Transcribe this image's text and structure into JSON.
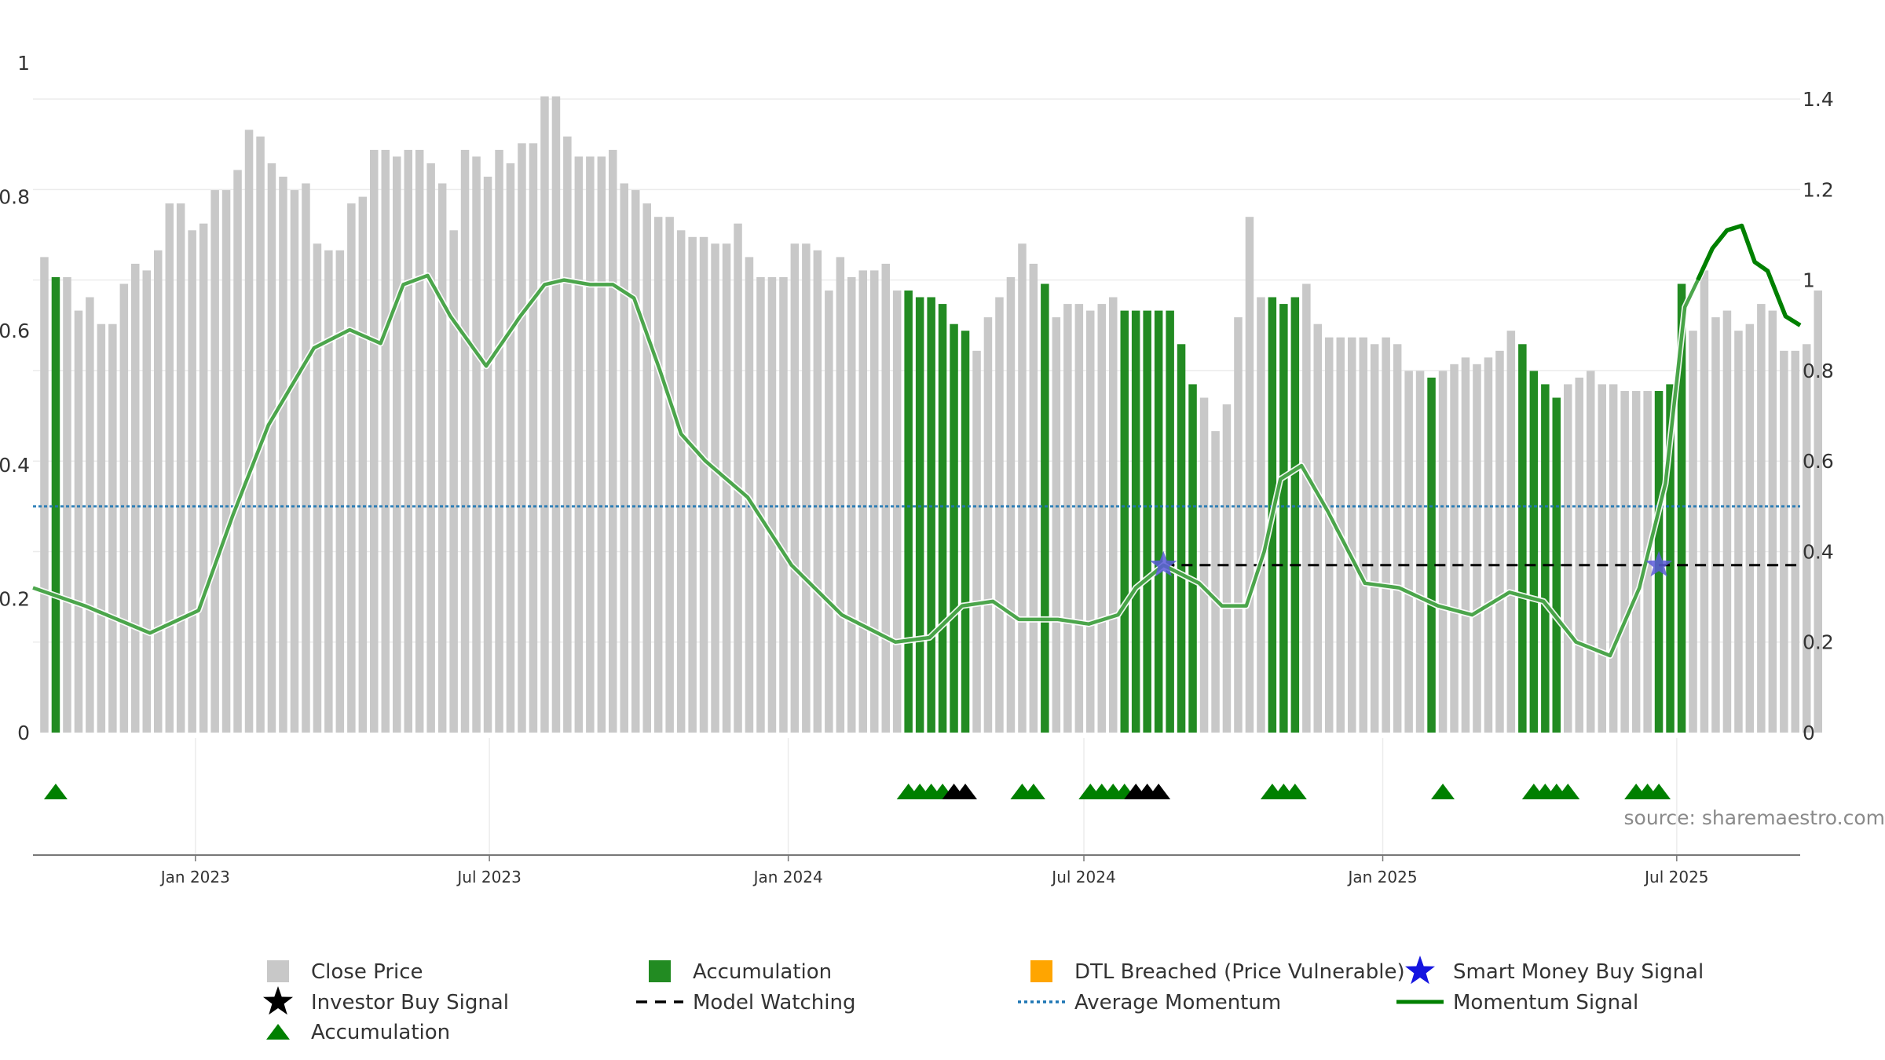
{
  "source_text": "source: sharemaestro.com",
  "colors": {
    "close_price": "#c8c8c8",
    "accumulation": "#228b22",
    "dtl": "#ffa500",
    "smart_money": "#1515e0",
    "investor_buy": "#000000",
    "average_momentum": "#1f77b4",
    "momentum_signal": "#008000",
    "model_watching": "#000000"
  },
  "legend": [
    {
      "label": "Close Price",
      "symbol": "square",
      "color": "#c8c8c8"
    },
    {
      "label": "Accumulation",
      "symbol": "square",
      "color": "#228b22"
    },
    {
      "label": "DTL Breached (Price Vulnerable)",
      "symbol": "square",
      "color": "#ffa500"
    },
    {
      "label": "Smart Money Buy Signal",
      "symbol": "star",
      "color": "#1515e0"
    },
    {
      "label": "Investor Buy Signal",
      "symbol": "star",
      "color": "#000000"
    },
    {
      "label": "Model Watching",
      "symbol": "dash",
      "color": "#000000"
    },
    {
      "label": "Average Momentum",
      "symbol": "dot",
      "color": "#1f77b4"
    },
    {
      "label": "Momentum Signal",
      "symbol": "line",
      "color": "#008000"
    },
    {
      "label": "Accumulation",
      "symbol": "triangle",
      "color": "#008000"
    }
  ],
  "chart_data": {
    "type": "bar",
    "x_axis": {
      "range": [
        "2022-09-23",
        "2025-09-15"
      ],
      "tick_labels": [
        "Jan 2023",
        "Jul 2023",
        "Jan 2024",
        "Jul 2024",
        "Jan 2025",
        "Jul 2025"
      ],
      "tick_dates": [
        "2023-01-01",
        "2023-07-01",
        "2024-01-01",
        "2024-07-01",
        "2025-01-01",
        "2025-07-01"
      ]
    },
    "y_left": {
      "range": [
        0,
        1
      ],
      "ticks": [
        0,
        0.2,
        0.4,
        0.6,
        0.8,
        1
      ],
      "tick_labels": [
        "0",
        "0.2",
        "0.4",
        "0.6",
        "0.8",
        "1"
      ]
    },
    "y_right": {
      "range": [
        0,
        1.48
      ],
      "ticks": [
        0,
        0.2,
        0.4,
        0.6,
        0.8,
        1,
        1.2,
        1.4
      ],
      "tick_labels": [
        "0",
        "0.2",
        "0.4",
        "0.6",
        "0.8",
        "1",
        "1.2",
        "1.4"
      ]
    },
    "grid": true,
    "legend_position": "bottom",
    "bar_series": {
      "name": "Close Price",
      "start_date": "2022-09-30",
      "interval_days": 7,
      "values": [
        0.71,
        0.68,
        0.68,
        0.63,
        0.65,
        0.61,
        0.61,
        0.67,
        0.7,
        0.69,
        0.72,
        0.79,
        0.79,
        0.75,
        0.76,
        0.81,
        0.81,
        0.84,
        0.9,
        0.89,
        0.85,
        0.83,
        0.81,
        0.82,
        0.73,
        0.72,
        0.72,
        0.79,
        0.8,
        0.87,
        0.87,
        0.86,
        0.87,
        0.87,
        0.85,
        0.82,
        0.75,
        0.87,
        0.86,
        0.83,
        0.87,
        0.85,
        0.88,
        0.88,
        0.95,
        0.95,
        0.89,
        0.86,
        0.86,
        0.86,
        0.87,
        0.82,
        0.81,
        0.79,
        0.77,
        0.77,
        0.75,
        0.74,
        0.74,
        0.73,
        0.73,
        0.76,
        0.71,
        0.68,
        0.68,
        0.68,
        0.73,
        0.73,
        0.72,
        0.66,
        0.71,
        0.68,
        0.69,
        0.69,
        0.7,
        0.66,
        0.66,
        0.65,
        0.65,
        0.64,
        0.61,
        0.6,
        0.57,
        0.62,
        0.65,
        0.68,
        0.73,
        0.7,
        0.67,
        0.62,
        0.64,
        0.64,
        0.63,
        0.64,
        0.65,
        0.63,
        0.63,
        0.63,
        0.63,
        0.63,
        0.58,
        0.52,
        0.5,
        0.45,
        0.49,
        0.62,
        0.77,
        0.65,
        0.65,
        0.64,
        0.65,
        0.67,
        0.61,
        0.59,
        0.59,
        0.59,
        0.59,
        0.58,
        0.59,
        0.58,
        0.54,
        0.54,
        0.53,
        0.54,
        0.55,
        0.56,
        0.55,
        0.56,
        0.57,
        0.6,
        0.58,
        0.54,
        0.52,
        0.5,
        0.52,
        0.53,
        0.54,
        0.52,
        0.52,
        0.51,
        0.51,
        0.51,
        0.51,
        0.52,
        0.67,
        0.6,
        0.69,
        0.62,
        0.63,
        0.6,
        0.61,
        0.64,
        0.63,
        0.57,
        0.57,
        0.58,
        0.66
      ],
      "accumulation_indices": [
        1,
        76,
        77,
        78,
        79,
        80,
        81,
        88,
        95,
        96,
        97,
        98,
        99,
        100,
        101,
        108,
        109,
        110,
        122,
        130,
        131,
        132,
        133,
        142,
        143,
        144
      ]
    },
    "series": [
      {
        "name": "Momentum Signal",
        "axis": "right",
        "x": [
          "2022-09-23",
          "2022-10-25",
          "2022-12-04",
          "2023-01-03",
          "2023-01-24",
          "2023-02-15",
          "2023-03-15",
          "2023-04-06",
          "2023-04-25",
          "2023-05-09",
          "2023-05-24",
          "2023-06-07",
          "2023-06-29",
          "2023-07-20",
          "2023-08-04",
          "2023-08-16",
          "2023-09-01",
          "2023-09-15",
          "2023-09-28",
          "2023-10-14",
          "2023-10-27",
          "2023-11-11",
          "2023-12-07",
          "2024-01-03",
          "2024-02-03",
          "2024-03-07",
          "2024-03-28",
          "2024-04-17",
          "2024-05-06",
          "2024-05-22",
          "2024-06-15",
          "2024-07-04",
          "2024-07-22",
          "2024-08-02",
          "2024-08-19",
          "2024-09-10",
          "2024-09-24",
          "2024-10-09",
          "2024-10-20",
          "2024-10-30",
          "2024-11-12",
          "2024-11-28",
          "2024-12-21",
          "2025-01-11",
          "2025-02-04",
          "2025-02-25",
          "2025-03-20",
          "2025-04-10",
          "2025-04-30",
          "2025-05-21",
          "2025-06-08",
          "2025-06-24",
          "2025-07-06",
          "2025-07-14",
          "2025-07-23",
          "2025-08-01",
          "2025-08-10",
          "2025-08-18",
          "2025-08-26",
          "2025-09-06",
          "2025-09-15"
        ],
        "y": [
          0.32,
          0.28,
          0.22,
          0.27,
          0.48,
          0.68,
          0.85,
          0.89,
          0.86,
          0.99,
          1.01,
          0.92,
          0.81,
          0.92,
          0.99,
          1.0,
          0.99,
          0.99,
          0.96,
          0.8,
          0.66,
          0.6,
          0.52,
          0.37,
          0.26,
          0.2,
          0.21,
          0.28,
          0.29,
          0.25,
          0.25,
          0.24,
          0.26,
          0.32,
          0.37,
          0.33,
          0.28,
          0.28,
          0.4,
          0.56,
          0.59,
          0.49,
          0.33,
          0.32,
          0.28,
          0.26,
          0.31,
          0.29,
          0.2,
          0.17,
          0.32,
          0.55,
          0.94,
          1.0,
          1.07,
          1.11,
          1.12,
          1.04,
          1.02,
          0.92,
          0.9
        ]
      },
      {
        "name": "Average Momentum",
        "axis": "right",
        "constant": 0.5
      },
      {
        "name": "Model Watching",
        "axis": "right",
        "constant": 0.37,
        "segments": [
          [
            "2024-08-19",
            "2025-06-13"
          ],
          [
            "2025-06-20",
            "2025-09-15"
          ]
        ]
      }
    ],
    "smart_money_buy_signals": [
      {
        "date": "2024-08-19",
        "y": 0.37
      },
      {
        "date": "2025-06-20",
        "y": 0.37
      }
    ],
    "accumulation_markers": [
      "2022-10-07",
      "2024-03-15",
      "2024-03-22",
      "2024-03-29",
      "2024-04-05",
      "2024-05-24",
      "2024-05-31",
      "2024-07-05",
      "2024-07-12",
      "2024-07-19",
      "2024-07-26",
      "2024-10-25",
      "2024-11-01",
      "2024-11-08",
      "2025-02-07",
      "2025-04-04",
      "2025-04-11",
      "2025-04-18",
      "2025-04-25",
      "2025-06-06",
      "2025-06-13",
      "2025-06-20"
    ],
    "investor_buy_markers": [
      "2024-04-12",
      "2024-04-19",
      "2024-08-02",
      "2024-08-09",
      "2024-08-16"
    ]
  }
}
